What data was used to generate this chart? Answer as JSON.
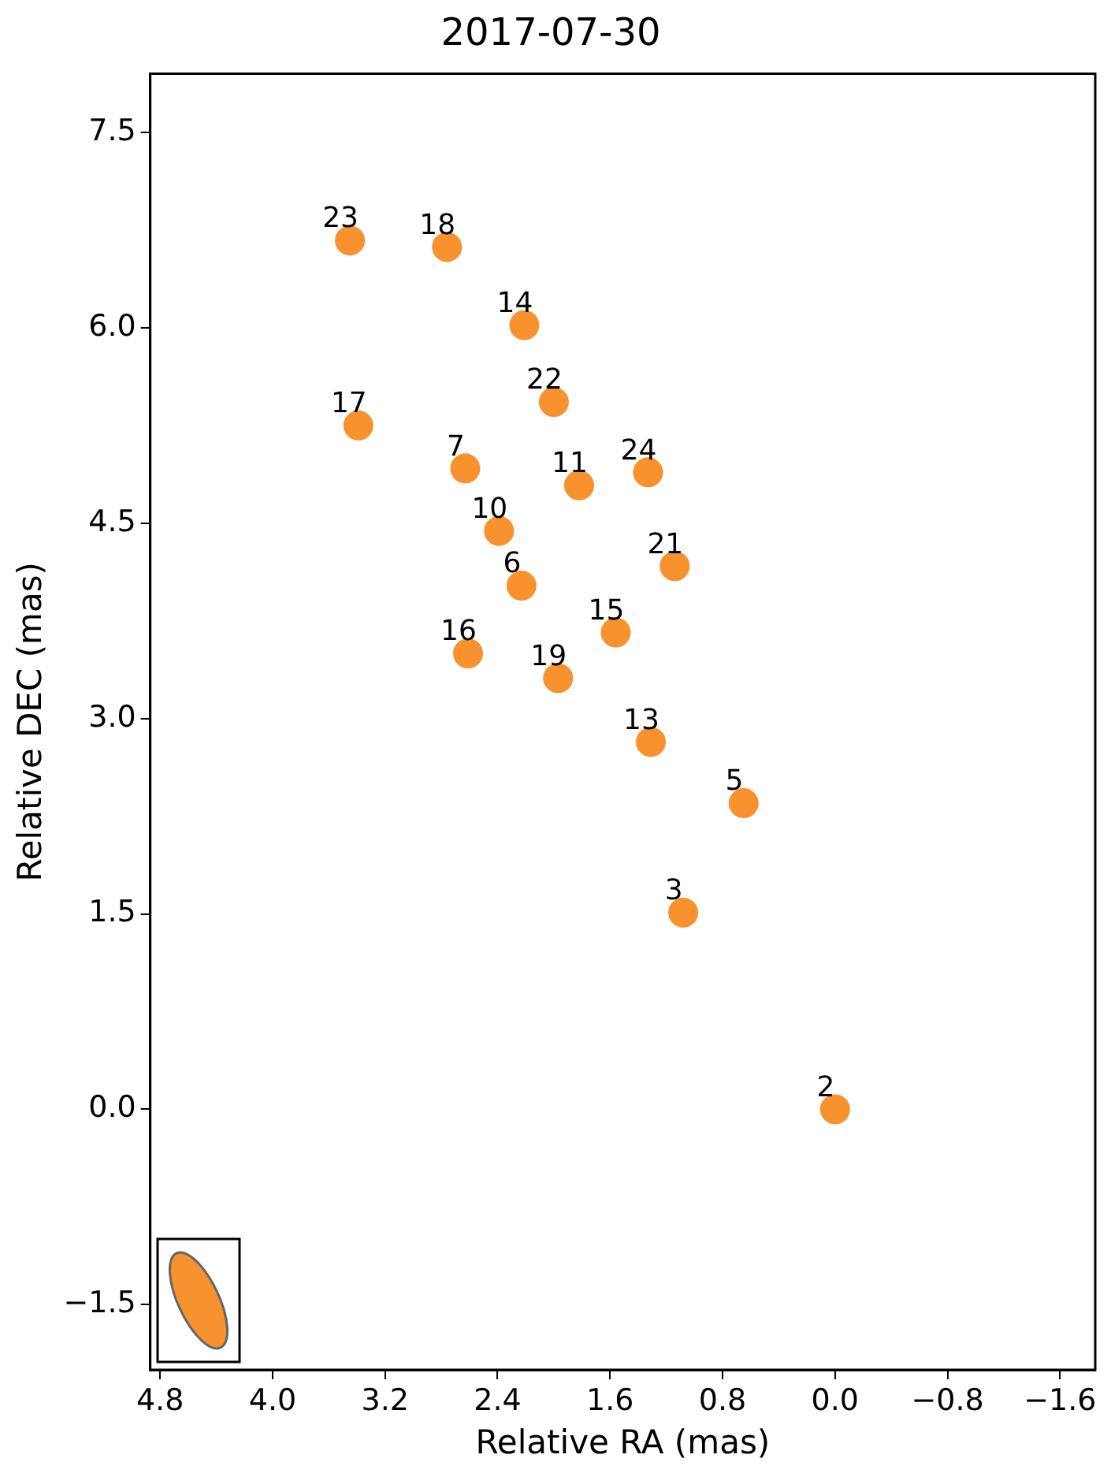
{
  "chart_data": {
    "type": "scatter",
    "title": "2017-07-30",
    "xlabel": "Relative RA (mas)",
    "ylabel": "Relative DEC (mas)",
    "x": [
      3.45,
      2.76,
      2.21,
      2.0,
      3.39,
      2.63,
      1.33,
      1.82,
      2.39,
      1.14,
      2.23,
      1.56,
      2.61,
      1.97,
      1.31,
      0.65,
      1.08,
      0.0
    ],
    "series": [
      {
        "color": "#f7922e",
        "values": [
          6.67,
          6.62,
          6.02,
          5.43,
          5.25,
          4.92,
          4.89,
          4.79,
          4.44,
          4.17,
          4.02,
          3.66,
          3.5,
          3.31,
          2.82,
          2.35,
          1.51,
          0.0
        ]
      }
    ],
    "annotations": [
      {
        "text": "23",
        "x": 3.45,
        "y": 6.67
      },
      {
        "text": "18",
        "x": 2.76,
        "y": 6.62
      },
      {
        "text": "14",
        "x": 2.21,
        "y": 6.02
      },
      {
        "text": "22",
        "x": 2.0,
        "y": 5.43
      },
      {
        "text": "17",
        "x": 3.39,
        "y": 5.25
      },
      {
        "text": "7",
        "x": 2.63,
        "y": 4.92
      },
      {
        "text": "24",
        "x": 1.33,
        "y": 4.89
      },
      {
        "text": "11",
        "x": 1.82,
        "y": 4.79
      },
      {
        "text": "10",
        "x": 2.39,
        "y": 4.44
      },
      {
        "text": "21",
        "x": 1.14,
        "y": 4.17
      },
      {
        "text": "6",
        "x": 2.23,
        "y": 4.02
      },
      {
        "text": "15",
        "x": 1.56,
        "y": 3.66
      },
      {
        "text": "16",
        "x": 2.61,
        "y": 3.5
      },
      {
        "text": "19",
        "x": 1.97,
        "y": 3.31
      },
      {
        "text": "13",
        "x": 1.31,
        "y": 2.82
      },
      {
        "text": "5",
        "x": 0.65,
        "y": 2.35
      },
      {
        "text": "3",
        "x": 1.08,
        "y": 1.51
      },
      {
        "text": "2",
        "x": 0.0,
        "y": 0.0
      }
    ],
    "xlim": [
      4.87,
      -1.85
    ],
    "xticks": [
      4.8,
      {
        "value": 4,
        "label": "4.0"
      },
      3.2,
      2.4,
      1.6,
      0.8,
      {
        "value": 0,
        "label": "0.0"
      },
      {
        "value": -0.8,
        "label": "−0.8"
      },
      {
        "value": -1.6,
        "label": "−1.6"
      }
    ],
    "ylim": [
      -2.0,
      7.95
    ],
    "yticks": [
      {
        "value": -1.5,
        "label": "−1.5"
      },
      {
        "value": 0,
        "label": "0.0"
      },
      1.5,
      {
        "value": 3,
        "label": "3.0"
      },
      4.5,
      {
        "value": 6,
        "label": "6.0"
      },
      7.5
    ],
    "grid": false,
    "marker": "circle",
    "legend": false
  }
}
